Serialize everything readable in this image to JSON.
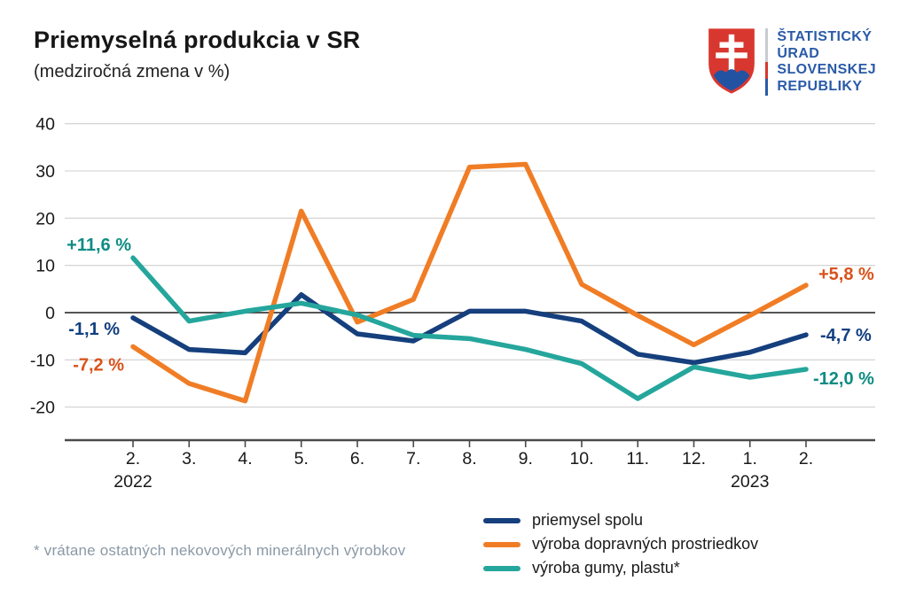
{
  "title": "Priemyselná produkcia v SR",
  "subtitle": "(medziročná zmena v %)",
  "logo": {
    "org_name_lines": [
      "ŠTATISTICKÝ",
      "ÚRAD",
      "SLOVENSKEJ",
      "REPUBLIKY"
    ],
    "text_color": "#2a5aa8",
    "shield_red": "#d8372f",
    "shield_blue": "#2253a3"
  },
  "chart_data": {
    "type": "line",
    "x_tick_labels": [
      "2.",
      "3.",
      "4.",
      "5.",
      "6.",
      "7.",
      "8.",
      "9.",
      "10.",
      "11.",
      "12.",
      "1.",
      "2."
    ],
    "x_year_labels": [
      {
        "label": "2022",
        "at_index": 0
      },
      {
        "label": "2023",
        "at_index": 11
      }
    ],
    "y_ticks": [
      40,
      30,
      20,
      10,
      0,
      -10,
      -20
    ],
    "ylim": [
      -25,
      42
    ],
    "grid": true,
    "legend_position": "bottom",
    "series": [
      {
        "name": "priemysel spolu",
        "color": "#153f7d",
        "values": [
          -1.1,
          -7.8,
          -8.5,
          3.8,
          -4.5,
          -6.0,
          0.3,
          0.3,
          -1.8,
          -8.8,
          -10.6,
          -8.4,
          -4.7
        ]
      },
      {
        "name": "výroba dopravných prostriedkov",
        "color": "#f07d25",
        "values": [
          -7.2,
          -15.0,
          -18.7,
          21.5,
          -2.0,
          2.8,
          30.8,
          31.4,
          6.0,
          -0.6,
          -6.8,
          -0.6,
          5.8
        ]
      },
      {
        "name": "výroba gumy, plastu*",
        "color": "#25a69c",
        "values": [
          11.6,
          -1.8,
          0.3,
          2.0,
          -0.5,
          -4.8,
          -5.5,
          -7.8,
          -10.8,
          -18.2,
          -11.5,
          -13.7,
          -12.0
        ]
      }
    ],
    "annotations": [
      {
        "text": "+11,6 %",
        "series": "výroba gumy, plastu*",
        "position": "start",
        "color": "#0e8c83"
      },
      {
        "text": "-1,1 %",
        "series": "priemysel spolu",
        "position": "start",
        "color": "#123f82"
      },
      {
        "text": "-7,2 %",
        "series": "výroba dopravných prostriedkov",
        "position": "start",
        "color": "#d9521b"
      },
      {
        "text": "+5,8 %",
        "series": "výroba dopravných prostriedkov",
        "position": "end",
        "color": "#d9521b"
      },
      {
        "text": "-4,7 %",
        "series": "priemysel spolu",
        "position": "end",
        "color": "#123f82"
      },
      {
        "text": "-12,0 %",
        "series": "výroba gumy, plastu*",
        "position": "end",
        "color": "#0e8c83"
      }
    ]
  },
  "footnote": "* vrátane ostatných nekovových minerálnych výrobkov"
}
